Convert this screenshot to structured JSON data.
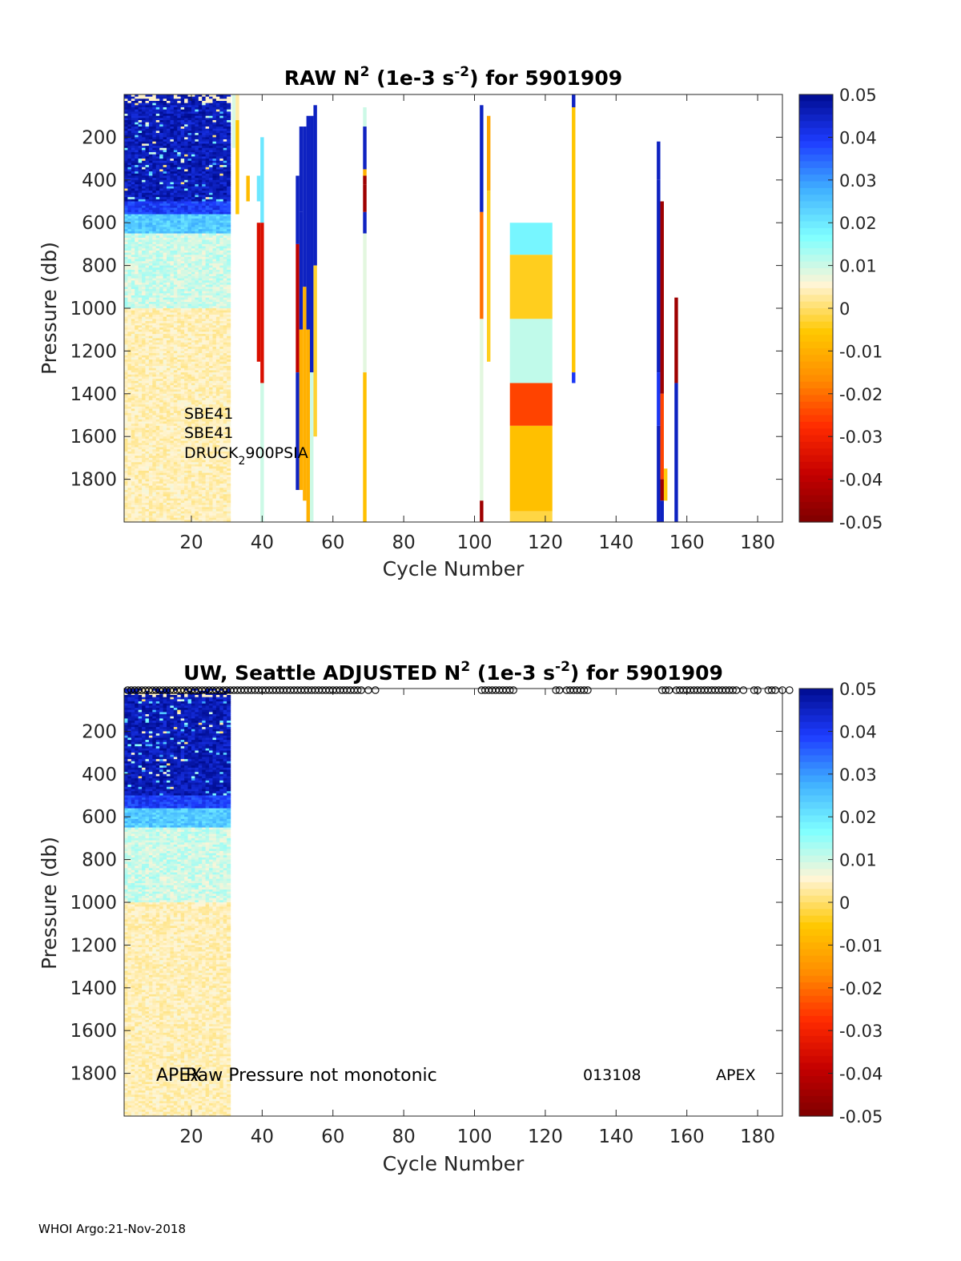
{
  "chart_data": [
    {
      "type": "heatmap",
      "title_parts": [
        "RAW N",
        "2",
        " (1e-3 s",
        "-2",
        ") for 5901909"
      ],
      "xlabel": "Cycle Number",
      "ylabel": "Pressure (db)",
      "xlim": [
        1,
        187
      ],
      "ylim": [
        0,
        2000
      ],
      "y_reversed": true,
      "xticks": [
        20,
        40,
        60,
        80,
        100,
        120,
        140,
        160,
        180
      ],
      "yticks": [
        200,
        400,
        600,
        800,
        1000,
        1200,
        1400,
        1600,
        1800
      ],
      "colorbar": {
        "range": [
          -0.05,
          0.05
        ],
        "ticks": [
          0.05,
          0.04,
          0.03,
          0.02,
          0.01,
          0,
          -0.01,
          -0.02,
          -0.03,
          -0.04,
          -0.05
        ],
        "colors": [
          "#7f0000",
          "#c40000",
          "#ff2a00",
          "#ff8c00",
          "#ffc800",
          "#fff5d6",
          "#7fffff",
          "#3fb0ff",
          "#1e3cff",
          "#000c8f"
        ]
      },
      "annotations": {
        "sensor_line_1": "SBE41",
        "sensor_line_2": "SBE41",
        "sensor_line_3_parts": [
          "DRUCK",
          "2",
          "900PSIA"
        ]
      },
      "bulk_block": {
        "x_range": [
          1,
          31
        ],
        "pressure_range": [
          0,
          2000
        ],
        "value_profile": "high (~0.045) at 0-500 db, ~0.025 at 500-650 db, ~0.008 at 650-1000 db, ~0.003 below 1000 db"
      },
      "columns": [
        {
          "cycle": 32,
          "segments": [
            [
              0,
              250,
              0.009
            ]
          ]
        },
        {
          "cycle": 33,
          "segments": [
            [
              0,
              120,
              0.003
            ],
            [
              120,
              560,
              -0.006
            ]
          ]
        },
        {
          "cycle": 36,
          "segments": [
            [
              380,
              500,
              -0.008
            ]
          ]
        },
        {
          "cycle": 39,
          "segments": [
            [
              380,
              500,
              0.02
            ],
            [
              600,
              1250,
              -0.035
            ]
          ]
        },
        {
          "cycle": 40,
          "segments": [
            [
              200,
              600,
              0.02
            ],
            [
              600,
              1350,
              -0.035
            ],
            [
              1350,
              2000,
              0.01
            ]
          ]
        },
        {
          "cycle": 50,
          "segments": [
            [
              380,
              700,
              0.045
            ],
            [
              700,
              1300,
              -0.04
            ],
            [
              1300,
              1850,
              0.045
            ]
          ]
        },
        {
          "cycle": 51,
          "segments": [
            [
              150,
              550,
              0.045
            ],
            [
              550,
              1100,
              0.045
            ],
            [
              1100,
              1850,
              -0.01
            ]
          ]
        },
        {
          "cycle": 52,
          "segments": [
            [
              150,
              900,
              0.045
            ],
            [
              900,
              1900,
              -0.01
            ]
          ]
        },
        {
          "cycle": 53,
          "segments": [
            [
              100,
              1100,
              0.045
            ],
            [
              1100,
              2000,
              -0.01
            ]
          ]
        },
        {
          "cycle": 54,
          "segments": [
            [
              100,
              1300,
              0.045
            ],
            [
              1300,
              2000,
              0.01
            ]
          ]
        },
        {
          "cycle": 55,
          "segments": [
            [
              50,
              800,
              0.045
            ],
            [
              800,
              1600,
              -0.003
            ]
          ]
        },
        {
          "cycle": 69,
          "segments": [
            [
              60,
              150,
              0.01
            ],
            [
              150,
              350,
              0.045
            ],
            [
              350,
              380,
              -0.01
            ],
            [
              380,
              420,
              -0.045
            ],
            [
              420,
              550,
              -0.045
            ],
            [
              550,
              650,
              0.045
            ],
            [
              650,
              1300,
              0.008
            ],
            [
              1300,
              2000,
              -0.007
            ]
          ]
        },
        {
          "cycle": 102,
          "segments": [
            [
              50,
              550,
              0.045
            ],
            [
              550,
              1050,
              -0.02
            ],
            [
              1050,
              1900,
              0.008
            ],
            [
              1900,
              2000,
              -0.045
            ]
          ]
        },
        {
          "cycle": 104,
          "segments": [
            [
              100,
              450,
              -0.012
            ],
            [
              450,
              1250,
              -0.004
            ]
          ]
        },
        {
          "cycle": 128,
          "segments": [
            [
              0,
              60,
              0.045
            ],
            [
              60,
              1300,
              -0.006
            ],
            [
              1300,
              1350,
              0.04
            ]
          ]
        },
        {
          "cycle": 152,
          "segments": [
            [
              220,
              400,
              0.045
            ],
            [
              400,
              1300,
              0.045
            ],
            [
              1300,
              1550,
              0.04
            ],
            [
              1550,
              2000,
              0.045
            ]
          ]
        },
        {
          "cycle": 153,
          "segments": [
            [
              500,
              1400,
              -0.045
            ],
            [
              1400,
              1800,
              -0.025
            ],
            [
              1800,
              1900,
              -0.045
            ],
            [
              1900,
              2000,
              0.045
            ]
          ]
        },
        {
          "cycle": 154,
          "segments": [
            [
              1750,
              1900,
              -0.005
            ]
          ]
        },
        {
          "cycle": 157,
          "segments": [
            [
              950,
              1350,
              -0.045
            ],
            [
              1350,
              2000,
              0.045
            ]
          ]
        }
      ],
      "blocks": [
        {
          "x_range": [
            110,
            122
          ],
          "segments": [
            [
              600,
              750,
              0.018
            ],
            [
              750,
              1050,
              -0.004
            ],
            [
              1050,
              1350,
              0.011
            ],
            [
              1350,
              1550,
              -0.025
            ],
            [
              1550,
              1950,
              -0.007
            ],
            [
              1950,
              2000,
              -0.002
            ]
          ]
        }
      ]
    },
    {
      "type": "heatmap",
      "title_parts": [
        "UW, Seattle  ADJUSTED N",
        "2",
        " (1e-3 s",
        "-2",
        ") for 5901909"
      ],
      "xlabel": "Cycle Number",
      "ylabel": "Pressure (db)",
      "xlim": [
        1,
        187
      ],
      "ylim": [
        0,
        2000
      ],
      "y_reversed": true,
      "xticks": [
        20,
        40,
        60,
        80,
        100,
        120,
        140,
        160,
        180
      ],
      "yticks": [
        200,
        400,
        600,
        800,
        1000,
        1200,
        1400,
        1600,
        1800
      ],
      "colorbar": {
        "range": [
          -0.05,
          0.05
        ],
        "ticks": [
          0.05,
          0.04,
          0.03,
          0.02,
          0.01,
          0,
          -0.01,
          -0.02,
          -0.03,
          -0.04,
          -0.05
        ],
        "colors": [
          "#7f0000",
          "#c40000",
          "#ff2a00",
          "#ff8c00",
          "#ffc800",
          "#fff5d6",
          "#7fffff",
          "#3fb0ff",
          "#1e3cff",
          "#000c8f"
        ]
      },
      "annotations": {
        "left_apex": "APEX",
        "raw_pressure_note": "Raw Pressure not monotonic",
        "serial": "013108",
        "right_apex": "APEX"
      },
      "bulk_block": {
        "x_range": [
          1,
          31
        ],
        "pressure_range": [
          0,
          2000
        ],
        "value_profile": "high (~0.045) at 0-500 db, ~0.025 at 500-650 db, ~0.008 at 650-1000 db, ~0.003 below 1000 db"
      },
      "flagged_cycles": [
        2,
        3,
        4,
        5,
        6,
        7,
        8,
        9,
        10,
        11,
        12,
        13,
        14,
        15,
        16,
        17,
        18,
        19,
        20,
        21,
        22,
        23,
        24,
        25,
        26,
        27,
        28,
        29,
        30,
        31,
        32,
        33,
        34,
        35,
        36,
        37,
        38,
        39,
        40,
        41,
        42,
        43,
        44,
        45,
        46,
        47,
        48,
        49,
        50,
        51,
        52,
        53,
        54,
        55,
        56,
        57,
        58,
        59,
        60,
        61,
        62,
        63,
        64,
        65,
        66,
        67,
        68,
        70,
        72,
        102,
        103,
        104,
        105,
        106,
        107,
        108,
        109,
        110,
        111,
        123,
        124,
        126,
        127,
        128,
        129,
        130,
        131,
        132,
        153,
        154,
        155,
        157,
        158,
        159,
        160,
        161,
        162,
        163,
        164,
        165,
        166,
        167,
        168,
        169,
        170,
        171,
        172,
        173,
        174,
        176,
        179,
        180,
        183,
        184,
        185,
        187,
        189
      ]
    }
  ],
  "footer": {
    "text": "WHOI Argo:21-Nov-2018"
  }
}
